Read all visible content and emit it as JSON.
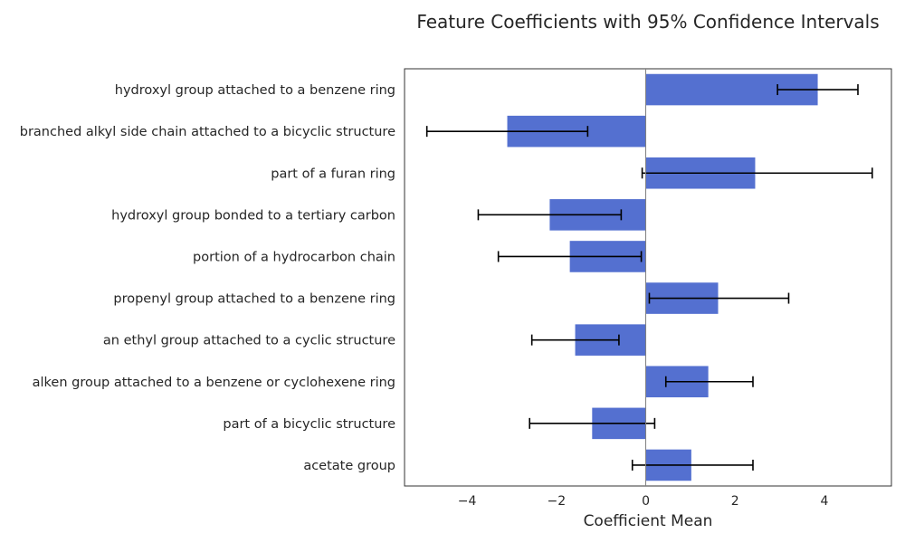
{
  "chart_data": {
    "type": "bar",
    "orientation": "horizontal",
    "title": "Feature Coefficients with 95% Confidence Intervals",
    "xlabel": "Coefficient Mean",
    "ylabel": "",
    "xlim": [
      -5.4,
      5.5
    ],
    "xticks": [
      -4,
      -2,
      0,
      2,
      4
    ],
    "xtick_labels": [
      "−4",
      "−2",
      "0",
      "2",
      "4"
    ],
    "grid": false,
    "bar_color": "#5470d0",
    "categories": [
      "hydroxyl group attached to a benzene ring",
      "branched alkyl side chain attached to a bicyclic structure",
      "part of a furan ring",
      "hydroxyl group bonded to a tertiary carbon",
      "portion of a hydrocarbon chain",
      "propenyl group attached to a benzene ring",
      "an ethyl group attached to a cyclic structure",
      "alken group attached to a benzene or cyclohexene ring",
      "part of a bicyclic structure",
      "acetate group"
    ],
    "values": [
      3.85,
      -3.1,
      2.45,
      -2.15,
      -1.7,
      1.62,
      -1.58,
      1.4,
      -1.2,
      1.02
    ],
    "ci_lower": [
      2.95,
      -4.9,
      -0.08,
      -3.75,
      -3.3,
      0.08,
      -2.55,
      0.45,
      -2.6,
      -0.3
    ],
    "ci_upper": [
      4.75,
      -1.3,
      5.07,
      -0.55,
      -0.1,
      3.2,
      -0.6,
      2.4,
      0.2,
      2.4
    ]
  }
}
